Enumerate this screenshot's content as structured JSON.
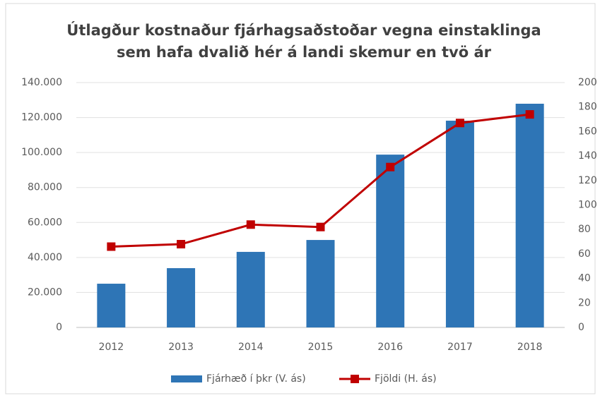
{
  "chart_data": {
    "type": "bar",
    "title": [
      "Útlagður kostnaður fjárhagsaðstoðar vegna einstaklinga",
      "sem hafa dvalið hér á landi skemur en tvö ár"
    ],
    "categories": [
      "2012",
      "2013",
      "2014",
      "2015",
      "2016",
      "2017",
      "2018"
    ],
    "series": [
      {
        "name": "Fjárhæð í þkr (V. ás)",
        "type": "bar",
        "color": "#2e75b6",
        "values": [
          25000,
          33900,
          43200,
          50000,
          98800,
          118200,
          127900
        ]
      },
      {
        "name": "Fjöldi (H. ás)",
        "type": "line",
        "axis": "y2",
        "color": "#c00000",
        "values": [
          66,
          68,
          84,
          82,
          131,
          167,
          174
        ]
      }
    ],
    "ylim": [
      0,
      140000
    ],
    "yticks": [
      0,
      {
        "value": 20000,
        "label": "20.000"
      },
      {
        "value": 40000,
        "label": "40.000"
      },
      {
        "value": 60000,
        "label": "60.000"
      },
      {
        "value": 80000,
        "label": "80.000"
      },
      {
        "value": 100000,
        "label": "100.000"
      },
      {
        "value": 120000,
        "label": "120.000"
      },
      {
        "value": 140000,
        "label": "140.000"
      }
    ],
    "y2lim": [
      0,
      200
    ],
    "y2ticks": [
      0,
      20,
      40,
      60,
      80,
      100,
      120,
      140,
      160,
      180,
      200
    ],
    "grid": true,
    "legend": "bottom"
  }
}
